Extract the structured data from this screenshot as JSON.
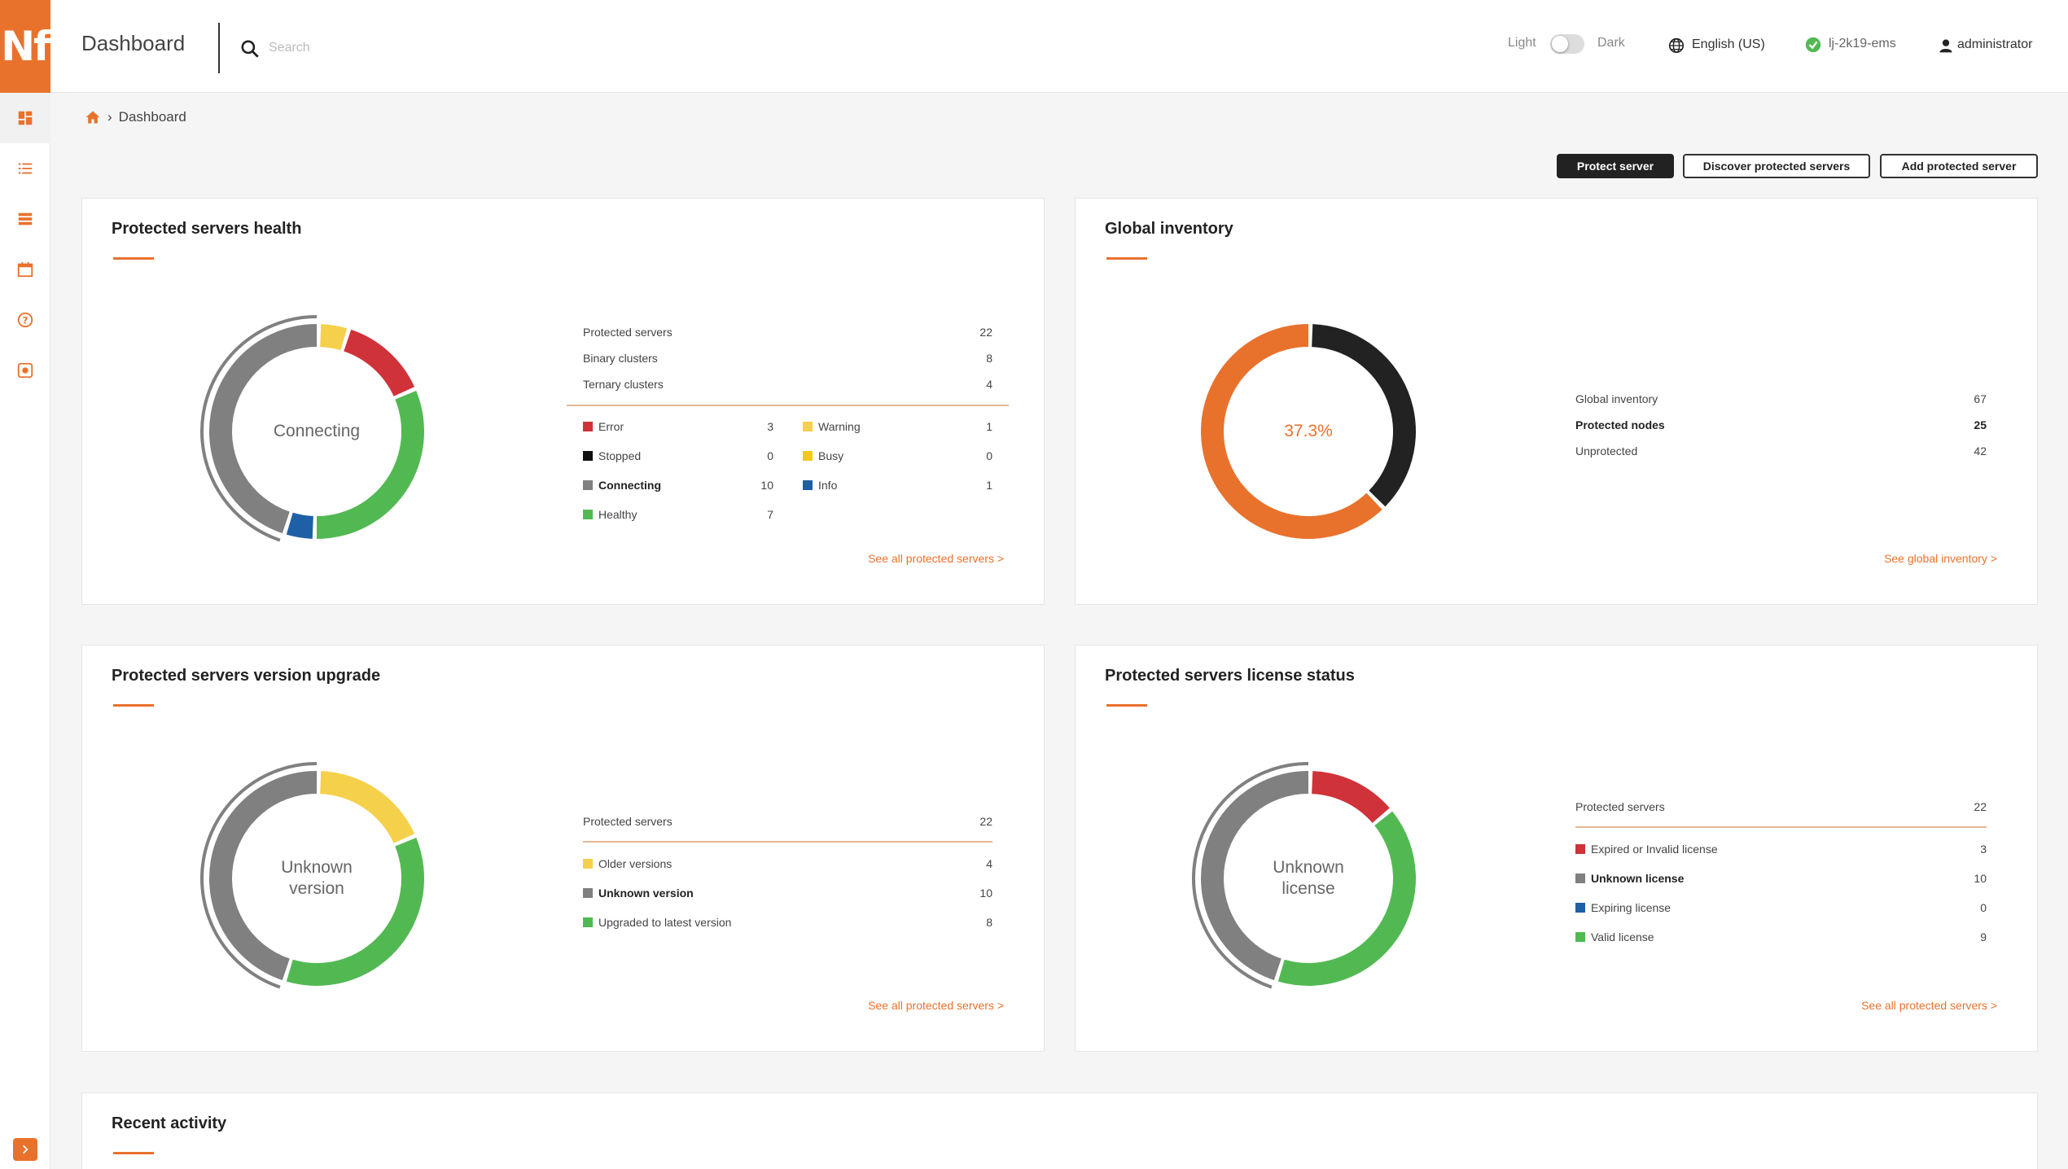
{
  "app": {
    "logo_text": "Nf",
    "title": "Dashboard"
  },
  "search": {
    "placeholder": "Search"
  },
  "header": {
    "theme_light": "Light",
    "theme_dark": "Dark",
    "language": "English (US)",
    "server_name": "lj-2k19-ems",
    "user": "administrator"
  },
  "sidebar": {
    "items": [
      {
        "icon": "dashboard-icon"
      },
      {
        "icon": "list-icon"
      },
      {
        "icon": "servers-icon"
      },
      {
        "icon": "calendar-icon"
      },
      {
        "icon": "help-icon"
      },
      {
        "icon": "settings-icon"
      }
    ],
    "expand_icon": "chevron-right-icon"
  },
  "breadcrumb": {
    "separator": "›",
    "current": "Dashboard"
  },
  "actions": {
    "protect_server": "Protect server",
    "discover_servers": "Discover protected servers",
    "add_server": "Add protected server"
  },
  "colors": {
    "accent": "#e8722c",
    "error": "#d0323a",
    "warning": "#f5d04a",
    "stopped": "#111111",
    "busy": "#f2c81b",
    "connecting": "#808080",
    "info": "#1f5fa6",
    "healthy": "#52b952"
  },
  "health": {
    "title": "Protected servers health",
    "center": "Connecting",
    "stats": [
      {
        "label": "Protected servers",
        "value": "22"
      },
      {
        "label": "Binary clusters",
        "value": "8"
      },
      {
        "label": "Ternary clusters",
        "value": "4"
      }
    ],
    "legend_left": [
      {
        "label": "Error",
        "value": "3",
        "color": "#d0323a"
      },
      {
        "label": "Stopped",
        "value": "0",
        "color": "#111111"
      },
      {
        "label": "Connecting",
        "value": "10",
        "color": "#808080"
      },
      {
        "label": "Healthy",
        "value": "7",
        "color": "#52b952"
      }
    ],
    "legend_right": [
      {
        "label": "Warning",
        "value": "1",
        "color": "#f5d04a"
      },
      {
        "label": "Busy",
        "value": "0",
        "color": "#f2c81b"
      },
      {
        "label": "Info",
        "value": "1",
        "color": "#1f5fa6"
      }
    ],
    "link": "See all protected servers >"
  },
  "inventory": {
    "title": "Global inventory",
    "center": "37.3%",
    "stats": [
      {
        "label": "Global inventory",
        "value": "67"
      },
      {
        "label": "Protected nodes",
        "value": "25"
      },
      {
        "label": "Unprotected",
        "value": "42"
      }
    ],
    "link": "See global inventory >"
  },
  "version": {
    "title": "Protected servers version upgrade",
    "center": "Unknown version",
    "stats": [
      {
        "label": "Protected servers",
        "value": "22"
      }
    ],
    "legend": [
      {
        "label": "Older versions",
        "value": "4",
        "color": "#f5d04a"
      },
      {
        "label": "Unknown version",
        "value": "10",
        "color": "#808080"
      },
      {
        "label": "Upgraded to latest version",
        "value": "8",
        "color": "#52b952"
      }
    ],
    "link": "See all protected servers >"
  },
  "license": {
    "title": "Protected servers license status",
    "center": "Unknown license",
    "stats": [
      {
        "label": "Protected servers",
        "value": "22"
      }
    ],
    "legend": [
      {
        "label": "Expired or Invalid license",
        "value": "3",
        "color": "#d0323a"
      },
      {
        "label": "Unknown license",
        "value": "10",
        "color": "#808080"
      },
      {
        "label": "Expiring license",
        "value": "0",
        "color": "#1f5fa6"
      },
      {
        "label": "Valid license",
        "value": "9",
        "color": "#52b952"
      }
    ],
    "link": "See all protected servers >"
  },
  "activity": {
    "title": "Recent activity"
  },
  "chart_data": [
    {
      "type": "pie",
      "title": "Protected servers health",
      "categories": [
        "Warning",
        "Error",
        "Healthy",
        "Info",
        "Connecting"
      ],
      "values": [
        1,
        3,
        7,
        1,
        10
      ],
      "colors": [
        "#f5d04a",
        "#d0323a",
        "#52b952",
        "#1f5fa6",
        "#808080"
      ],
      "highlight": "Connecting"
    },
    {
      "type": "pie",
      "title": "Global inventory",
      "categories": [
        "Protected nodes",
        "Unprotected"
      ],
      "values": [
        25,
        42
      ],
      "colors": [
        "#222222",
        "#e8722c"
      ]
    },
    {
      "type": "pie",
      "title": "Protected servers version upgrade",
      "categories": [
        "Older versions",
        "Upgraded to latest version",
        "Unknown version"
      ],
      "values": [
        4,
        8,
        10
      ],
      "colors": [
        "#f5d04a",
        "#52b952",
        "#808080"
      ],
      "highlight": "Unknown version"
    },
    {
      "type": "pie",
      "title": "Protected servers license status",
      "categories": [
        "Expired or Invalid license",
        "Valid license",
        "Unknown license"
      ],
      "values": [
        3,
        9,
        10
      ],
      "colors": [
        "#d0323a",
        "#52b952",
        "#808080"
      ],
      "highlight": "Unknown license"
    }
  ]
}
